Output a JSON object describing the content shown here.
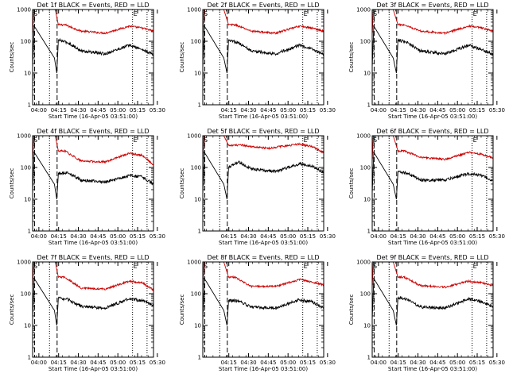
{
  "chart_data": [
    {
      "type": "line",
      "title": "Det 1f BLACK = Events, RED = LLD",
      "xlabel": "Start Time (16-Apr-05 03:51:00)",
      "ylabel": "Counts/sec",
      "xticks": [
        "04:00",
        "04:15",
        "04:30",
        "04:45",
        "05:00",
        "05:15",
        "05:30"
      ],
      "yticks": [
        "1",
        "10",
        "100",
        "1000"
      ],
      "ylim": [
        1,
        1000
      ],
      "yscale": "log",
      "grid": false,
      "markers": {
        "s": "S",
        "e": "E"
      },
      "series": [
        {
          "color": "#cc0000",
          "values": [
            [
              0,
              150
            ],
            [
              0.7,
              1000
            ],
            [
              14,
              1000
            ],
            [
              16,
              330
            ],
            [
              20,
              330
            ],
            [
              30,
              210
            ],
            [
              45,
              180
            ],
            [
              60,
              300
            ],
            [
              68,
              260
            ],
            [
              75,
              210
            ]
          ]
        },
        {
          "color": "#000000",
          "values": [
            [
              0,
              15
            ],
            [
              1,
              300
            ],
            [
              13.5,
              30
            ],
            [
              15,
              10
            ],
            [
              16,
              110
            ],
            [
              22,
              90
            ],
            [
              30,
              50
            ],
            [
              45,
              40
            ],
            [
              60,
              75
            ],
            [
              68,
              55
            ],
            [
              75,
              38
            ]
          ]
        }
      ]
    },
    {
      "type": "line",
      "title": "Det 2f BLACK = Events, RED = LLD",
      "xlabel": "Start Time (16-Apr-05 03:51:00)",
      "ylabel": "Counts/sec",
      "xticks": [
        "04:15",
        "04:30",
        "04:45",
        "05:00",
        "05:15",
        "05:30"
      ],
      "yticks": [
        "1",
        "10",
        "100",
        "1000"
      ],
      "ylim": [
        1,
        1000
      ],
      "yscale": "log",
      "grid": false,
      "markers": {
        "s": "S",
        "e": "E"
      },
      "series": [
        {
          "color": "#cc0000",
          "values": [
            [
              0,
              150
            ],
            [
              0.7,
              1000
            ],
            [
              13,
              1000
            ],
            [
              16,
              330
            ],
            [
              20,
              330
            ],
            [
              30,
              210
            ],
            [
              45,
              180
            ],
            [
              60,
              300
            ],
            [
              68,
              260
            ],
            [
              75,
              210
            ]
          ]
        },
        {
          "color": "#000000",
          "values": [
            [
              0,
              15
            ],
            [
              1,
              300
            ],
            [
              13,
              30
            ],
            [
              15,
              10
            ],
            [
              16,
              110
            ],
            [
              22,
              90
            ],
            [
              30,
              50
            ],
            [
              45,
              40
            ],
            [
              60,
              75
            ],
            [
              68,
              55
            ],
            [
              75,
              38
            ]
          ]
        }
      ]
    },
    {
      "type": "line",
      "title": "Det 3f BLACK = Events, RED = LLD",
      "xlabel": "Start Time (16-Apr-05 03:51:00)",
      "ylabel": "Counts/sec",
      "xticks": [
        "04:00",
        "04:15",
        "04:30",
        "04:45",
        "05:00",
        "05:15",
        "05:30"
      ],
      "yticks": [
        "1",
        "10",
        "100",
        "1000"
      ],
      "ylim": [
        1,
        1000
      ],
      "yscale": "log",
      "grid": false,
      "markers": {
        "s": "S",
        "e": "E"
      },
      "series": [
        {
          "color": "#cc0000",
          "values": [
            [
              0,
              150
            ],
            [
              0.7,
              1000
            ],
            [
              13,
              1000
            ],
            [
              16,
              330
            ],
            [
              20,
              330
            ],
            [
              30,
              210
            ],
            [
              45,
              180
            ],
            [
              60,
              300
            ],
            [
              68,
              260
            ],
            [
              75,
              210
            ]
          ]
        },
        {
          "color": "#000000",
          "values": [
            [
              0,
              15
            ],
            [
              1,
              300
            ],
            [
              13,
              30
            ],
            [
              15,
              10
            ],
            [
              16,
              110
            ],
            [
              22,
              90
            ],
            [
              30,
              50
            ],
            [
              45,
              40
            ],
            [
              60,
              75
            ],
            [
              68,
              55
            ],
            [
              75,
              38
            ]
          ]
        }
      ]
    },
    {
      "type": "line",
      "title": "Det 4f BLACK = Events, RED = LLD",
      "xlabel": "Start Time (16-Apr-05 03:51:00)",
      "ylabel": "Counts/sec",
      "xticks": [
        "04:00",
        "04:15",
        "04:30",
        "04:45",
        "05:00",
        "05:15",
        "05:30"
      ],
      "yticks": [
        "1",
        "10",
        "100",
        "1000"
      ],
      "ylim": [
        1,
        1000
      ],
      "yscale": "log",
      "grid": false,
      "markers": {
        "s": "S",
        "e": "E"
      },
      "series": [
        {
          "color": "#cc0000",
          "values": [
            [
              0,
              150
            ],
            [
              0.7,
              1000
            ],
            [
              14,
              1000
            ],
            [
              16,
              330
            ],
            [
              20,
              330
            ],
            [
              30,
              160
            ],
            [
              45,
              150
            ],
            [
              60,
              280
            ],
            [
              68,
              240
            ],
            [
              75,
              120
            ]
          ]
        },
        {
          "color": "#000000",
          "values": [
            [
              0,
              15
            ],
            [
              1,
              300
            ],
            [
              13.5,
              30
            ],
            [
              15,
              10
            ],
            [
              16,
              65
            ],
            [
              22,
              70
            ],
            [
              30,
              40
            ],
            [
              45,
              35
            ],
            [
              60,
              55
            ],
            [
              68,
              50
            ],
            [
              75,
              30
            ]
          ]
        }
      ]
    },
    {
      "type": "line",
      "title": "Det 5f BLACK = Events, RED = LLD",
      "xlabel": "Start Time (16-Apr-05 03:51:00)",
      "ylabel": "Counts/sec",
      "xticks": [
        "04:15",
        "04:30",
        "04:45",
        "05:00",
        "05:15",
        "05:30"
      ],
      "yticks": [
        "1",
        "10",
        "100",
        "1000"
      ],
      "ylim": [
        1,
        1000
      ],
      "yscale": "log",
      "grid": false,
      "markers": {
        "s": "S",
        "e": "E"
      },
      "series": [
        {
          "color": "#cc0000",
          "values": [
            [
              0,
              150
            ],
            [
              0.7,
              1000
            ],
            [
              13,
              1000
            ],
            [
              16,
              500
            ],
            [
              25,
              500
            ],
            [
              40,
              400
            ],
            [
              60,
              550
            ],
            [
              68,
              450
            ],
            [
              75,
              300
            ]
          ]
        },
        {
          "color": "#000000",
          "values": [
            [
              0,
              15
            ],
            [
              1,
              300
            ],
            [
              13,
              30
            ],
            [
              15,
              10
            ],
            [
              16,
              100
            ],
            [
              22,
              150
            ],
            [
              30,
              90
            ],
            [
              45,
              75
            ],
            [
              60,
              130
            ],
            [
              68,
              110
            ],
            [
              75,
              70
            ]
          ]
        }
      ]
    },
    {
      "type": "line",
      "title": "Det 6f BLACK = Events, RED = LLD",
      "xlabel": "Start Time (16-Apr-05 03:51:00)",
      "ylabel": "Counts/sec",
      "xticks": [
        "04:00",
        "04:15",
        "04:30",
        "04:45",
        "05:00",
        "05:15",
        "05:30"
      ],
      "yticks": [
        "1",
        "10",
        "100",
        "1000"
      ],
      "ylim": [
        1,
        1000
      ],
      "yscale": "log",
      "grid": false,
      "markers": {
        "s": "S",
        "e": "E"
      },
      "series": [
        {
          "color": "#cc0000",
          "values": [
            [
              0,
              150
            ],
            [
              0.7,
              1000
            ],
            [
              13,
              1000
            ],
            [
              16,
              330
            ],
            [
              20,
              330
            ],
            [
              30,
              210
            ],
            [
              45,
              180
            ],
            [
              60,
              300
            ],
            [
              68,
              260
            ],
            [
              75,
              200
            ]
          ]
        },
        {
          "color": "#000000",
          "values": [
            [
              0,
              15
            ],
            [
              1,
              300
            ],
            [
              13,
              30
            ],
            [
              15,
              10
            ],
            [
              16,
              75
            ],
            [
              22,
              65
            ],
            [
              30,
              40
            ],
            [
              45,
              40
            ],
            [
              60,
              65
            ],
            [
              68,
              55
            ],
            [
              75,
              38
            ]
          ]
        }
      ]
    },
    {
      "type": "line",
      "title": "Det 7f BLACK = Events, RED = LLD",
      "xlabel": "Start Time (16-Apr-05 03:51:00)",
      "ylabel": "Counts/sec",
      "xticks": [
        "04:00",
        "04:15",
        "04:30",
        "04:45",
        "05:00",
        "05:15",
        "05:30"
      ],
      "yticks": [
        "1",
        "10",
        "100",
        "1000"
      ],
      "ylim": [
        1,
        1000
      ],
      "yscale": "log",
      "grid": false,
      "markers": {
        "s": "S",
        "e": "E"
      },
      "series": [
        {
          "color": "#cc0000",
          "values": [
            [
              0,
              150
            ],
            [
              0.7,
              1000
            ],
            [
              14,
              1000
            ],
            [
              16,
              330
            ],
            [
              20,
              330
            ],
            [
              30,
              150
            ],
            [
              45,
              140
            ],
            [
              60,
              250
            ],
            [
              68,
              220
            ],
            [
              75,
              130
            ]
          ]
        },
        {
          "color": "#000000",
          "values": [
            [
              0,
              15
            ],
            [
              1,
              300
            ],
            [
              13.5,
              30
            ],
            [
              15,
              10
            ],
            [
              16,
              75
            ],
            [
              22,
              65
            ],
            [
              30,
              40
            ],
            [
              45,
              35
            ],
            [
              60,
              70
            ],
            [
              68,
              60
            ],
            [
              75,
              45
            ]
          ]
        }
      ]
    },
    {
      "type": "line",
      "title": "Det 8f BLACK = Events, RED = LLD",
      "xlabel": "Start Time (16-Apr-05 03:51:00)",
      "ylabel": "Counts/sec",
      "xticks": [
        "04:15",
        "04:30",
        "04:45",
        "05:00",
        "05:15",
        "05:30"
      ],
      "yticks": [
        "1",
        "10",
        "100",
        "1000"
      ],
      "ylim": [
        1,
        1000
      ],
      "yscale": "log",
      "grid": false,
      "markers": {
        "s": "S",
        "e": "E"
      },
      "series": [
        {
          "color": "#cc0000",
          "values": [
            [
              0,
              150
            ],
            [
              0.7,
              1000
            ],
            [
              13,
              1000
            ],
            [
              16,
              330
            ],
            [
              20,
              330
            ],
            [
              30,
              170
            ],
            [
              45,
              170
            ],
            [
              60,
              280
            ],
            [
              68,
              230
            ],
            [
              75,
              190
            ]
          ]
        },
        {
          "color": "#000000",
          "values": [
            [
              0,
              15
            ],
            [
              1,
              300
            ],
            [
              13,
              30
            ],
            [
              15,
              10
            ],
            [
              16,
              60
            ],
            [
              22,
              60
            ],
            [
              30,
              38
            ],
            [
              45,
              35
            ],
            [
              60,
              65
            ],
            [
              68,
              55
            ],
            [
              75,
              35
            ]
          ]
        }
      ]
    },
    {
      "type": "line",
      "title": "Det 9f BLACK = Events, RED = LLD",
      "xlabel": "Start Time (16-Apr-05 03:51:00)",
      "ylabel": "Counts/sec",
      "xticks": [
        "04:00",
        "04:15",
        "04:30",
        "04:45",
        "05:00",
        "05:15",
        "05:30"
      ],
      "yticks": [
        "1",
        "10",
        "100",
        "1000"
      ],
      "ylim": [
        1,
        1000
      ],
      "yscale": "log",
      "grid": false,
      "markers": {
        "s": "S",
        "e": "E"
      },
      "series": [
        {
          "color": "#cc0000",
          "values": [
            [
              0,
              150
            ],
            [
              0.7,
              1000
            ],
            [
              13,
              1000
            ],
            [
              16,
              330
            ],
            [
              20,
              330
            ],
            [
              30,
              180
            ],
            [
              45,
              160
            ],
            [
              60,
              250
            ],
            [
              68,
              220
            ],
            [
              75,
              180
            ]
          ]
        },
        {
          "color": "#000000",
          "values": [
            [
              0,
              15
            ],
            [
              1,
              300
            ],
            [
              13,
              30
            ],
            [
              15,
              10
            ],
            [
              16,
              75
            ],
            [
              22,
              65
            ],
            [
              30,
              38
            ],
            [
              45,
              35
            ],
            [
              60,
              70
            ],
            [
              68,
              55
            ],
            [
              75,
              40
            ]
          ]
        }
      ]
    }
  ]
}
